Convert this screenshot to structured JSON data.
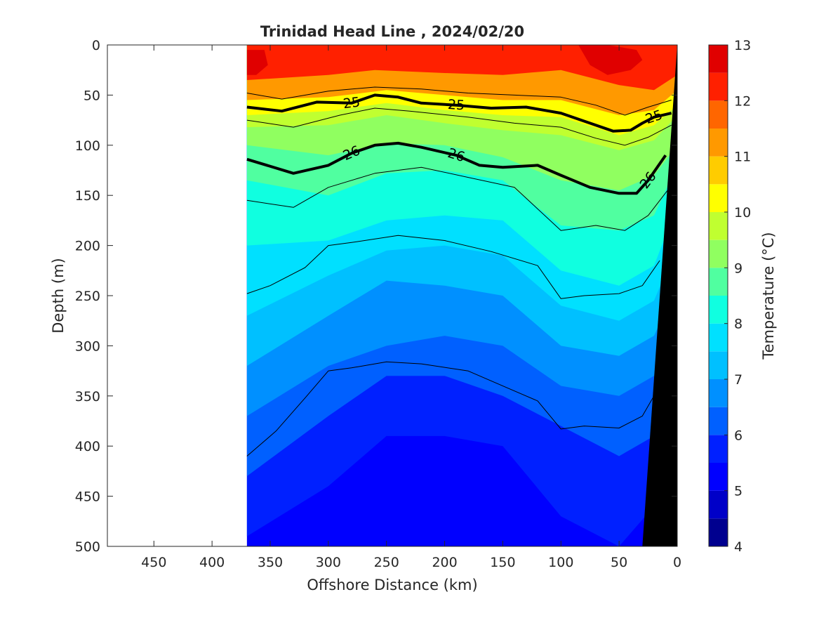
{
  "chart_data": {
    "type": "heatmap",
    "title": "Trinidad Head Line , 2024/02/20",
    "xlabel": "Offshore Distance (km)",
    "ylabel": "Depth (m)",
    "colorbar_label": "Temperature (°C)",
    "xlim": [
      490,
      0
    ],
    "ylim": [
      500,
      0
    ],
    "x_reversed": true,
    "y_reversed": true,
    "x_ticks": [
      "450",
      "400",
      "350",
      "300",
      "250",
      "200",
      "150",
      "100",
      "50",
      "0"
    ],
    "x_tick_values": [
      450,
      400,
      350,
      300,
      250,
      200,
      150,
      100,
      50,
      0
    ],
    "y_ticks": [
      "0",
      "50",
      "100",
      "150",
      "200",
      "250",
      "300",
      "350",
      "400",
      "450",
      "500"
    ],
    "y_tick_values": [
      0,
      50,
      100,
      150,
      200,
      250,
      300,
      350,
      400,
      450,
      500
    ],
    "colorbar_ticks": [
      "4",
      "5",
      "6",
      "7",
      "8",
      "9",
      "10",
      "11",
      "12",
      "13"
    ],
    "colorbar_tick_values": [
      4,
      5,
      6,
      7,
      8,
      9,
      10,
      11,
      12,
      13
    ],
    "color_levels": [
      4,
      4.5,
      5,
      5.5,
      6,
      6.5,
      7,
      7.5,
      8,
      8.5,
      9,
      9.5,
      10,
      10.5,
      11,
      11.5,
      12,
      12.5,
      13
    ],
    "colormap": [
      "#00008f",
      "#0000c8",
      "#0000ff",
      "#0020ff",
      "#0060ff",
      "#0090ff",
      "#00c0ff",
      "#00e0ff",
      "#10ffe0",
      "#50ffa0",
      "#90ff60",
      "#c0ff30",
      "#ffff00",
      "#ffcc00",
      "#ff9900",
      "#ff6600",
      "#ff2000",
      "#e00000",
      "#a00000"
    ],
    "data_extent_km": [
      370,
      0
    ],
    "grid": false,
    "temperature_bands": [
      {
        "temp": 12.0,
        "x": [
          370,
          300,
          260,
          200,
          150,
          100,
          50,
          20,
          0
        ],
        "depth": [
          35,
          30,
          25,
          28,
          30,
          25,
          40,
          45,
          30
        ]
      },
      {
        "temp": 11.0,
        "x": [
          370,
          300,
          250,
          200,
          150,
          100,
          50,
          20,
          0
        ],
        "depth": [
          55,
          52,
          45,
          50,
          55,
          55,
          70,
          65,
          45
        ]
      },
      {
        "temp": 10.0,
        "x": [
          370,
          300,
          250,
          200,
          150,
          100,
          50,
          20,
          0
        ],
        "depth": [
          70,
          66,
          58,
          65,
          70,
          72,
          90,
          80,
          60
        ]
      },
      {
        "temp": 9.5,
        "x": [
          370,
          300,
          250,
          200,
          150,
          100,
          50,
          20,
          0
        ],
        "depth": [
          82,
          80,
          70,
          78,
          85,
          90,
          105,
          95,
          70
        ]
      },
      {
        "temp": 9.0,
        "x": [
          370,
          300,
          250,
          200,
          150,
          100,
          50,
          20,
          0
        ],
        "depth": [
          100,
          110,
          98,
          100,
          112,
          135,
          145,
          130,
          100
        ]
      },
      {
        "temp": 8.5,
        "x": [
          370,
          300,
          250,
          200,
          150,
          100,
          50,
          20,
          0
        ],
        "depth": [
          135,
          150,
          128,
          125,
          135,
          180,
          185,
          170,
          120
        ]
      },
      {
        "temp": 8.0,
        "x": [
          370,
          300,
          250,
          200,
          150,
          100,
          50,
          20,
          0
        ],
        "depth": [
          200,
          195,
          175,
          170,
          175,
          225,
          240,
          220,
          160
        ]
      },
      {
        "temp": 7.5,
        "x": [
          370,
          300,
          250,
          200,
          150,
          100,
          50,
          20,
          0
        ],
        "depth": [
          270,
          230,
          205,
          200,
          210,
          260,
          275,
          255,
          200
        ]
      },
      {
        "temp": 7.0,
        "x": [
          370,
          300,
          250,
          200,
          150,
          100,
          50,
          20,
          0
        ],
        "depth": [
          320,
          270,
          235,
          240,
          250,
          300,
          310,
          290,
          240
        ]
      },
      {
        "temp": 6.5,
        "x": [
          370,
          300,
          250,
          200,
          150,
          100,
          50,
          20,
          0
        ],
        "depth": [
          370,
          320,
          300,
          290,
          300,
          340,
          350,
          330,
          290
        ]
      },
      {
        "temp": 6.0,
        "x": [
          370,
          300,
          250,
          200,
          150,
          100,
          50,
          20,
          0
        ],
        "depth": [
          430,
          370,
          330,
          330,
          350,
          380,
          410,
          390,
          350
        ]
      },
      {
        "temp": 5.5,
        "x": [
          370,
          300,
          250,
          200,
          150,
          100,
          50,
          20,
          0
        ],
        "depth": [
          490,
          440,
          390,
          390,
          400,
          470,
          500,
          460,
          420
        ]
      }
    ],
    "warm_patches": [
      {
        "temp": 12.5,
        "x": [
          130,
          100,
          85,
          80,
          75,
          60,
          40,
          30,
          35,
          60,
          90,
          130
        ],
        "depth": [
          0,
          0,
          0,
          10,
          20,
          30,
          25,
          15,
          5,
          0,
          0,
          0
        ]
      },
      {
        "temp": 12.5,
        "x": [
          370,
          355,
          352,
          362,
          370
        ],
        "depth": [
          5,
          5,
          20,
          30,
          30
        ]
      }
    ],
    "sigma_contours": [
      {
        "label": "25",
        "emphasis": true,
        "x": [
          370,
          340,
          310,
          280,
          260,
          240,
          220,
          190,
          160,
          130,
          100,
          75,
          55,
          40,
          30,
          20,
          5
        ],
        "depth": [
          62,
          66,
          57,
          58,
          50,
          52,
          58,
          60,
          63,
          62,
          68,
          78,
          86,
          85,
          78,
          72,
          68
        ]
      },
      {
        "label": "26",
        "emphasis": true,
        "x": [
          370,
          330,
          300,
          280,
          260,
          240,
          220,
          190,
          170,
          150,
          120,
          100,
          75,
          50,
          35,
          25,
          10
        ],
        "depth": [
          114,
          128,
          120,
          108,
          100,
          98,
          102,
          110,
          120,
          122,
          120,
          130,
          142,
          148,
          148,
          135,
          110
        ]
      },
      {
        "label": "",
        "emphasis": false,
        "x": [
          370,
          340,
          300,
          260,
          220,
          180,
          140,
          100,
          70,
          45,
          25,
          5
        ],
        "depth": [
          48,
          54,
          46,
          42,
          44,
          48,
          50,
          52,
          60,
          70,
          62,
          55
        ]
      },
      {
        "label": "",
        "emphasis": false,
        "x": [
          370,
          330,
          290,
          260,
          230,
          180,
          140,
          100,
          70,
          45,
          25,
          5
        ],
        "depth": [
          75,
          82,
          70,
          63,
          66,
          72,
          78,
          82,
          93,
          100,
          92,
          80
        ]
      },
      {
        "label": "",
        "emphasis": false,
        "x": [
          370,
          330,
          300,
          260,
          220,
          180,
          140,
          100,
          70,
          45,
          25,
          5
        ],
        "depth": [
          155,
          162,
          142,
          128,
          122,
          132,
          142,
          185,
          180,
          185,
          170,
          140
        ]
      },
      {
        "label": "",
        "emphasis": false,
        "x": [
          370,
          350,
          320,
          300,
          280,
          240,
          200,
          160,
          120,
          100,
          80,
          50,
          30,
          15
        ],
        "depth": [
          248,
          240,
          222,
          200,
          197,
          190,
          195,
          206,
          220,
          253,
          250,
          248,
          240,
          215
        ]
      },
      {
        "label": "",
        "emphasis": false,
        "x": [
          370,
          345,
          320,
          300,
          280,
          250,
          220,
          180,
          140,
          120,
          100,
          80,
          50,
          30,
          15
        ],
        "depth": [
          410,
          385,
          352,
          325,
          322,
          316,
          318,
          325,
          345,
          355,
          383,
          380,
          382,
          370,
          340
        ]
      }
    ],
    "shelf_bathymetry": {
      "x": [
        0,
        30,
        0
      ],
      "depth": [
        0,
        500,
        500
      ],
      "fill": "#000000"
    }
  }
}
